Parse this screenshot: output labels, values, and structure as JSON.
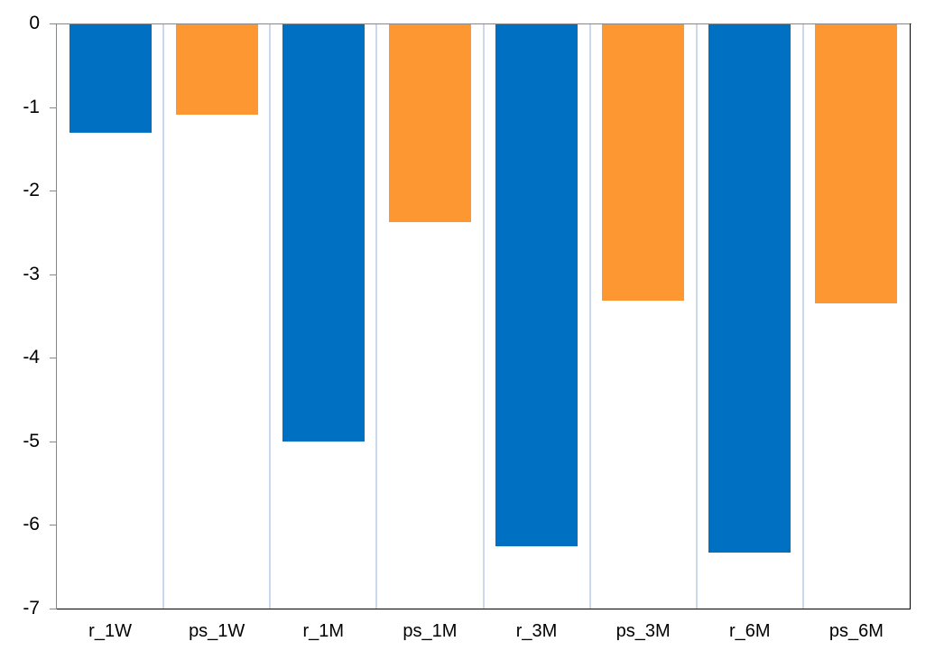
{
  "chart_data": {
    "type": "bar",
    "title": "",
    "xlabel": "",
    "ylabel": "",
    "categories": [
      "r_1W",
      "ps_1W",
      "r_1M",
      "ps_1M",
      "r_3M",
      "ps_3M",
      "r_6M",
      "ps_6M"
    ],
    "values": [
      -1.31,
      -1.09,
      -5.0,
      -2.38,
      -6.25,
      -3.32,
      -6.33,
      -3.35
    ],
    "bar_colors": [
      "#0071C2",
      "#FD9732",
      "#0071C2",
      "#FD9732",
      "#0071C2",
      "#FD9732",
      "#0071C2",
      "#FD9732"
    ],
    "y_tick_labels": [
      "0",
      "-1",
      "-2",
      "-3",
      "-4",
      "-5",
      "-6",
      "-7"
    ],
    "ylim": [
      -7,
      0
    ],
    "grid": "vertical-category-boundaries-only",
    "legend": "none",
    "colors": {
      "blue_series": "#0071C2",
      "orange_series": "#FD9732",
      "gridline": "#C9D8EC",
      "axis_line": "#878787",
      "plot_border": "#000000",
      "label_text": "#000000",
      "background": "#FFFFFF"
    }
  }
}
